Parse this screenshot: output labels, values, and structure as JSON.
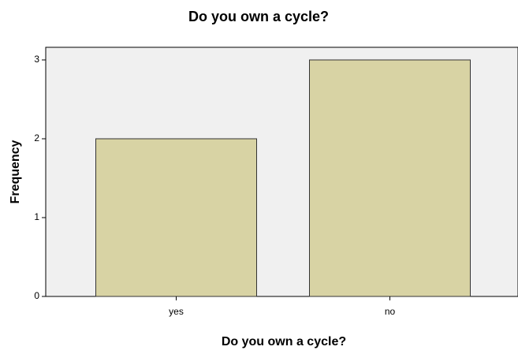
{
  "chart_data": {
    "type": "bar",
    "title": "Do you own a cycle?",
    "x_label": "Do you own a cycle?",
    "y_label": "Frequency",
    "categories": [
      "yes",
      "no"
    ],
    "values": [
      2,
      3
    ],
    "color": "#d8d3a4",
    "ylim": [
      0,
      3.16
    ],
    "yticks": [
      0,
      1,
      2,
      3
    ],
    "grid": false
  }
}
